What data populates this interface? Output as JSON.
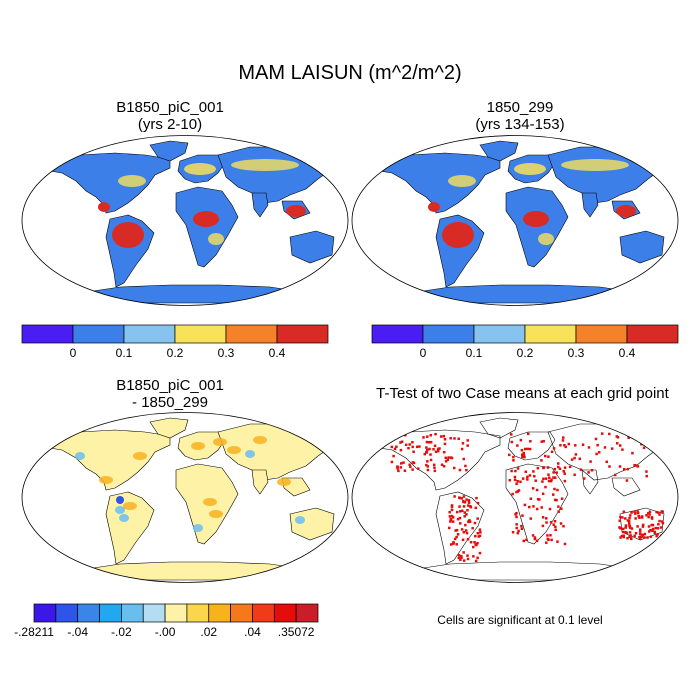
{
  "title": "MAM LAISUN (m^2/m^2)",
  "panels": {
    "top_left": {
      "title_line1": "B1850_piC_001",
      "title_line2": "(yrs 2-10)"
    },
    "top_right": {
      "title_line1": "1850_299",
      "title_line2": "(yrs 134-153)"
    },
    "bottom_left": {
      "title_line1": "B1850_piC_001",
      "title_line2": "- 1850_299"
    },
    "bottom_right": {
      "title_line1": "T-Test of two Case means at each grid point",
      "footnote": "Cells are significant at 0.1 level"
    }
  },
  "colorbar_abs": {
    "colors": [
      "#4a1ef2",
      "#3d7fe8",
      "#86c3ee",
      "#f8e25a",
      "#f3822a",
      "#d92b25"
    ],
    "labels": [
      "0",
      "0.1",
      "0.2",
      "0.3",
      "0.4"
    ]
  },
  "colorbar_diff": {
    "colors": [
      "#3b18e6",
      "#2f55e8",
      "#3a86e6",
      "#23a7f0",
      "#68bfef",
      "#b4ddf3",
      "#fdf2a6",
      "#fad64c",
      "#f8b21e",
      "#f5791c",
      "#ef3b18",
      "#e50c0c",
      "#c81e27"
    ],
    "labels": [
      "-.28211",
      "-.04",
      "-.02",
      "-.00",
      ".02",
      ".04",
      ".35072"
    ]
  },
  "map_colors": {
    "ocean_bg": "#ffffff",
    "land_abs": "#3d7fe8",
    "tropics_abs": "#d92b25",
    "temperate_abs": "#f8e25a",
    "land_diff": "#fdf2a6",
    "antarctica_diff": "#fdf2a6",
    "sig_red": "#e50c0c"
  }
}
